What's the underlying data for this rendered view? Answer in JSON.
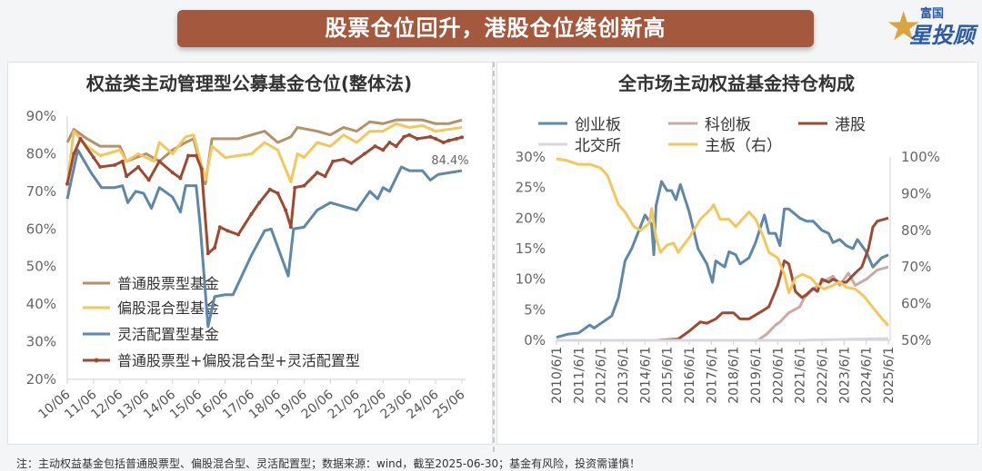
{
  "header": {
    "title": "股票仓位回升，港股仓位续创新高",
    "logo_small": "富国",
    "logo_big": "星投顾"
  },
  "footer": "注：主动权益基金包括普通股票型、偏股混合型、灵活配置型；数据来源：wind，截至2025-06-30；基金有风险，投资需谨慎！",
  "colors": {
    "banner": "#a4583e",
    "stock": "#b3926a",
    "mixed": "#f2c75c",
    "flex": "#5e87a8",
    "combined": "#9c4a31",
    "gem": "#5e87a8",
    "star": "#c9aaa5",
    "hk": "#9c4a31",
    "bse": "#d8d6de",
    "main": "#f2c75c"
  },
  "chart_data": [
    {
      "type": "line",
      "title": "权益类主动管理型公募基金仓位(整体法)",
      "xlabel": "",
      "ylabel": "",
      "ylim": [
        20,
        90
      ],
      "xlim": [
        2010.5,
        2025.5
      ],
      "yticks": [
        "20%",
        "30%",
        "40%",
        "50%",
        "60%",
        "70%",
        "80%",
        "90%"
      ],
      "xticks": [
        "10/06",
        "11/06",
        "12/06",
        "13/06",
        "14/06",
        "15/06",
        "16/06",
        "17/06",
        "18/06",
        "19/06",
        "20/06",
        "21/06",
        "22/06",
        "23/06",
        "24/06",
        "25/06"
      ],
      "annotation": "84.4%",
      "legend_position": "bottom-left",
      "series": [
        {
          "name": "普通股票型基金",
          "color_key": "stock",
          "x": [
            2010.5,
            2010.75,
            2011.25,
            2011.75,
            2012.5,
            2012.75,
            2013.5,
            2014,
            2014.5,
            2015,
            2015.3,
            2015.75,
            2016,
            2016.5,
            2017,
            2017.5,
            2018,
            2018.5,
            2019,
            2019.25,
            2020,
            2020.5,
            2021,
            2021.5,
            2022,
            2022.5,
            2023,
            2023.5,
            2024,
            2024.5,
            2025,
            2025.5
          ],
          "y": [
            83,
            86.5,
            84,
            82,
            82,
            78,
            80,
            78,
            81,
            83,
            84,
            72,
            84,
            84,
            84,
            85,
            86,
            83,
            84.5,
            87,
            86,
            85,
            87,
            86,
            88.5,
            88,
            89,
            89,
            89,
            88,
            88,
            89
          ]
        },
        {
          "name": "偏股混合型基金",
          "color_key": "mixed",
          "x": [
            2010.5,
            2010.75,
            2011.25,
            2011.75,
            2012.5,
            2012.75,
            2013.2,
            2013.8,
            2014,
            2014.5,
            2015,
            2015.3,
            2015.75,
            2016,
            2016.5,
            2017,
            2017.5,
            2018,
            2018.5,
            2019,
            2019.25,
            2019.5,
            2020,
            2020.5,
            2021,
            2021.5,
            2022,
            2022.5,
            2023,
            2023.5,
            2024,
            2024.5,
            2025,
            2025.5
          ],
          "y": [
            72,
            86,
            82,
            79.5,
            81,
            78,
            80,
            78,
            83,
            80,
            84.5,
            85,
            73,
            82,
            79,
            79.5,
            80,
            83,
            81,
            72.5,
            80,
            79,
            83,
            82,
            85,
            83,
            86,
            86,
            88,
            87,
            87.5,
            86,
            86.5,
            87
          ]
        },
        {
          "name": "灵活配置型基金",
          "color_key": "flex",
          "x": [
            2010.5,
            2010.9,
            2011.4,
            2011.8,
            2012.3,
            2012.6,
            2012.8,
            2013.1,
            2013.4,
            2013.7,
            2014,
            2014.5,
            2014.8,
            2015,
            2015.4,
            2015.55,
            2015.85,
            2016.1,
            2016.5,
            2016.8,
            2017.5,
            2018,
            2018.25,
            2018.9,
            2019.1,
            2019.5,
            2020,
            2020.5,
            2021,
            2021.5,
            2022,
            2022.3,
            2022.5,
            2022.75,
            2023.2,
            2023.5,
            2024,
            2024.3,
            2024.6,
            2025.5
          ],
          "y": [
            68,
            81,
            75,
            71,
            71,
            71.5,
            67,
            70,
            69.5,
            65.5,
            71,
            68.5,
            64.5,
            71.5,
            71.5,
            61,
            34,
            42,
            42.5,
            42.5,
            53,
            59.5,
            60,
            47.5,
            60,
            60.5,
            65,
            67,
            66,
            65,
            70,
            68,
            71,
            70,
            76.5,
            75.5,
            75.5,
            73,
            74.5,
            75.5
          ]
        },
        {
          "name": "普通股票型+偏股混合型+灵活配置型",
          "color_key": "combined",
          "markers": true,
          "x": [
            2010.5,
            2010.75,
            2011,
            2011.5,
            2011.75,
            2012.3,
            2012.6,
            2012.75,
            2013.2,
            2013.6,
            2014,
            2014.5,
            2014.8,
            2015.1,
            2015.4,
            2015.6,
            2015.85,
            2016.1,
            2016.3,
            2016.6,
            2017,
            2017.5,
            2017.8,
            2018.2,
            2018.5,
            2018.8,
            2019,
            2019.15,
            2019.5,
            2020,
            2020.3,
            2020.6,
            2021,
            2021.3,
            2021.8,
            2022.2,
            2022.5,
            2022.75,
            2023,
            2023.3,
            2023.5,
            2023.8,
            2024.3,
            2024.5,
            2024.8,
            2025,
            2025.3,
            2025.5
          ],
          "y": [
            72,
            80,
            84,
            79,
            76.5,
            77,
            78,
            74,
            76.5,
            73,
            78,
            75,
            73.5,
            79.5,
            79.5,
            76,
            53.5,
            55,
            60.5,
            59.5,
            58.5,
            64,
            67,
            70.5,
            69.5,
            65,
            60.5,
            71,
            71.5,
            75,
            74,
            78,
            78.5,
            77.5,
            80,
            82,
            81,
            83,
            82,
            84.5,
            85,
            84,
            84.5,
            84,
            83,
            83.5,
            84,
            84.4
          ]
        }
      ]
    },
    {
      "type": "line",
      "title": "全市场主动权益基金持仓构成",
      "ylim": [
        0,
        30
      ],
      "y2lim": [
        50,
        100
      ],
      "xlim": [
        2010.5,
        2025.5
      ],
      "yticks": [
        "0%",
        "5%",
        "10%",
        "15%",
        "20%",
        "25%",
        "30%"
      ],
      "y2ticks": [
        "50%",
        "60%",
        "70%",
        "80%",
        "90%",
        "100%"
      ],
      "xticks": [
        "2010/6/1",
        "2011/6/1",
        "2012/6/1",
        "2013/6/1",
        "2014/6/1",
        "2015/6/1",
        "2016/6/1",
        "2017/6/1",
        "2018/6/1",
        "2019/6/1",
        "2020/6/1",
        "2021/6/1",
        "2022/6/1",
        "2023/6/1",
        "2024/6/1",
        "2025/6/1"
      ],
      "legend_position": "top",
      "series": [
        {
          "name": "创业板",
          "color_key": "gem",
          "axis": "left",
          "x": [
            2010.5,
            2011,
            2011.5,
            2012,
            2012.2,
            2012.8,
            2013,
            2013.3,
            2013.6,
            2013.9,
            2014.5,
            2014.8,
            2014.9,
            2015,
            2015.25,
            2015.5,
            2015.7,
            2015.9,
            2016.1,
            2016.5,
            2016.9,
            2017.3,
            2017.55,
            2017.7,
            2018.1,
            2018.3,
            2018.6,
            2018.8,
            2019.2,
            2019.5,
            2019.9,
            2020.1,
            2020.4,
            2020.6,
            2020.8,
            2021,
            2021.5,
            2021.8,
            2022.1,
            2022.5,
            2022.8,
            2023,
            2023.3,
            2023.6,
            2023.9,
            2024.1,
            2024.5,
            2024.8,
            2025.2,
            2025.5
          ],
          "y": [
            0.5,
            1,
            1.2,
            2.5,
            2,
            3.5,
            4,
            7,
            13,
            15,
            20.5,
            19,
            14,
            22,
            26,
            24.5,
            24.5,
            23,
            25.5,
            21,
            15,
            12.5,
            9.5,
            13,
            12,
            14.5,
            14,
            12.5,
            13.5,
            16,
            20.5,
            17.5,
            17.5,
            15.5,
            21.5,
            21.5,
            20,
            19.5,
            19.5,
            18,
            17.5,
            16,
            16.5,
            15.5,
            15,
            16.5,
            14.5,
            12,
            13.5,
            14
          ]
        },
        {
          "name": "科创板",
          "color_key": "star",
          "axis": "left",
          "x": [
            2010.5,
            2019.6,
            2020,
            2020.4,
            2020.6,
            2021,
            2021.5,
            2021.7,
            2022,
            2022.5,
            2023,
            2023.3,
            2023.7,
            2024,
            2024.5,
            2025,
            2025.5
          ],
          "y": [
            0,
            0,
            1,
            2.5,
            3,
            4.5,
            5.5,
            7,
            8,
            9.5,
            10.5,
            9,
            11,
            9,
            10,
            11.5,
            12
          ]
        },
        {
          "name": "港股",
          "color_key": "hk",
          "axis": "left",
          "x": [
            2010.5,
            2015,
            2016,
            2016.5,
            2017,
            2017.3,
            2017.7,
            2018,
            2018.5,
            2018.8,
            2019.2,
            2019.8,
            2020.1,
            2020.5,
            2020.8,
            2021,
            2021.3,
            2021.6,
            2021.8,
            2022.1,
            2022.3,
            2022.5,
            2022.8,
            2023,
            2023.3,
            2023.6,
            2024,
            2024.3,
            2024.6,
            2024.8,
            2025,
            2025.5
          ],
          "y": [
            0,
            0,
            0.2,
            1.5,
            3,
            2.8,
            3.5,
            4.5,
            4.5,
            3.5,
            3.5,
            4.8,
            5.5,
            9,
            13,
            12.5,
            8,
            7,
            7.5,
            8.5,
            8,
            10,
            9.5,
            10,
            9.5,
            9.5,
            11,
            12,
            15,
            18.5,
            19.5,
            20
          ]
        },
        {
          "name": "北交所",
          "color_key": "bse",
          "axis": "left",
          "x": [
            2010.5,
            2021.5,
            2025.5
          ],
          "y": [
            0,
            0,
            0.3
          ]
        },
        {
          "name": "主板（右）",
          "color_key": "main",
          "axis": "right",
          "x": [
            2010.5,
            2011,
            2011.5,
            2012,
            2012.5,
            2012.8,
            2013.3,
            2013.6,
            2014,
            2014.3,
            2014.7,
            2014.8,
            2015,
            2015.2,
            2015.5,
            2015.8,
            2016,
            2016.5,
            2017,
            2017.5,
            2017.6,
            2017.9,
            2018.3,
            2018.6,
            2018.9,
            2019.2,
            2019.5,
            2019.8,
            2020.1,
            2020.5,
            2020.8,
            2021,
            2021.3,
            2021.6,
            2022,
            2022.3,
            2022.6,
            2023,
            2023.3,
            2023.6,
            2024,
            2024.4,
            2024.8,
            2025.2,
            2025.5
          ],
          "y": [
            99.5,
            99,
            98,
            98,
            97,
            95,
            87,
            85,
            81,
            80,
            82,
            86,
            78,
            74,
            76,
            76.5,
            74,
            78,
            83,
            86,
            87,
            83,
            83,
            81,
            83,
            85,
            83,
            79,
            74,
            72.5,
            68,
            63,
            67,
            68,
            67,
            65,
            64,
            65,
            66,
            64.5,
            64,
            62,
            59,
            56,
            54
          ]
        }
      ]
    }
  ]
}
